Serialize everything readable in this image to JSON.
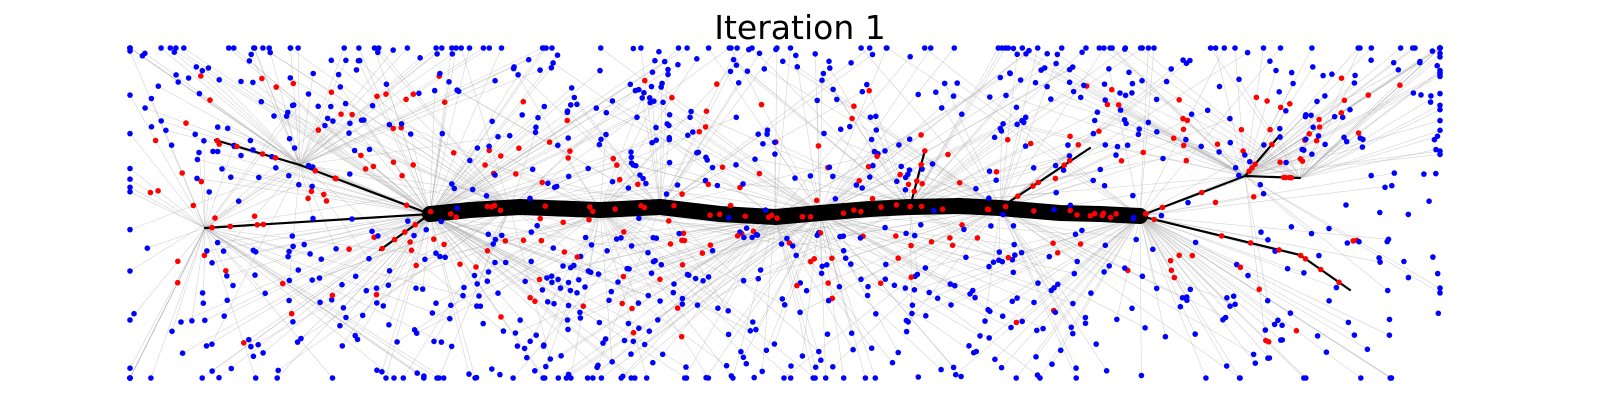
{
  "figure": {
    "title": "Iteration 1"
  },
  "style": {
    "background": "#ffffff",
    "leaf_node_color": "#0000ff",
    "internal_node_color": "#ff0000",
    "trunk_color": "#000000",
    "edge_color": "#b0b0b0"
  }
}
